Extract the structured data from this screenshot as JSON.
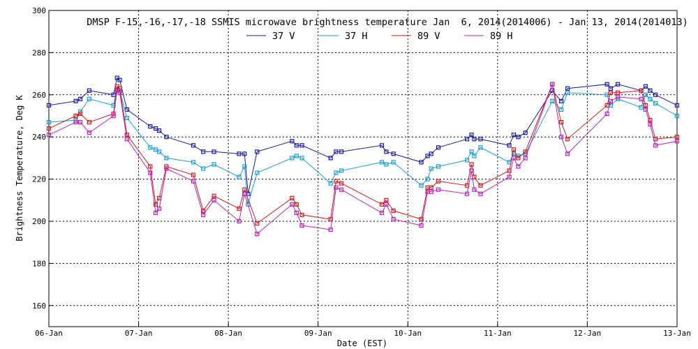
{
  "chart_data": {
    "type": "line",
    "title": "DMSP F-15,-16,-17,-18 SSMIS microwave brightness temperature Jan  6, 2014(2014006) - Jan 13, 2014(2014013)",
    "xlabel": "Date (EST)",
    "ylabel": "Brightness Temperature, Deg K",
    "xlim": [
      0,
      7
    ],
    "ylim": [
      150,
      300
    ],
    "grid": true,
    "legend_position": "top-center",
    "x_ticks": [
      {
        "value": 0,
        "label": "06-Jan"
      },
      {
        "value": 1,
        "label": "07-Jan"
      },
      {
        "value": 2,
        "label": "08-Jan"
      },
      {
        "value": 3,
        "label": "09-Jan"
      },
      {
        "value": 4,
        "label": "10-Jan"
      },
      {
        "value": 5,
        "label": "11-Jan"
      },
      {
        "value": 6,
        "label": "12-Jan"
      },
      {
        "value": 7,
        "label": "13-Jan"
      }
    ],
    "y_ticks": [
      160,
      180,
      200,
      220,
      240,
      260,
      280,
      300
    ],
    "series": [
      {
        "name": "37 V",
        "color": "#1a1aa6",
        "points": [
          [
            0.0,
            255
          ],
          [
            0.3,
            257
          ],
          [
            0.35,
            258
          ],
          [
            0.45,
            262
          ],
          [
            0.72,
            260
          ],
          [
            0.76,
            268
          ],
          [
            0.79,
            267
          ],
          [
            0.87,
            253
          ],
          [
            1.13,
            245
          ],
          [
            1.19,
            244
          ],
          [
            1.23,
            243
          ],
          [
            1.31,
            240
          ],
          [
            1.61,
            236
          ],
          [
            1.72,
            233
          ],
          [
            1.84,
            233
          ],
          [
            2.12,
            232
          ],
          [
            2.18,
            232
          ],
          [
            2.22,
            213
          ],
          [
            2.32,
            233
          ],
          [
            2.71,
            238
          ],
          [
            2.76,
            236
          ],
          [
            2.82,
            236
          ],
          [
            3.14,
            230
          ],
          [
            3.2,
            233
          ],
          [
            3.26,
            233
          ],
          [
            3.71,
            236
          ],
          [
            3.76,
            233
          ],
          [
            3.84,
            232
          ],
          [
            4.15,
            228
          ],
          [
            4.22,
            231
          ],
          [
            4.26,
            232
          ],
          [
            4.34,
            235
          ],
          [
            4.66,
            239
          ],
          [
            4.71,
            241
          ],
          [
            4.74,
            239
          ],
          [
            4.81,
            239
          ],
          [
            5.13,
            236
          ],
          [
            5.18,
            241
          ],
          [
            5.23,
            240
          ],
          [
            5.31,
            242
          ],
          [
            5.61,
            262
          ],
          [
            5.71,
            257
          ],
          [
            5.78,
            263
          ],
          [
            6.22,
            265
          ],
          [
            6.26,
            263
          ],
          [
            6.34,
            265
          ],
          [
            6.6,
            262
          ],
          [
            6.65,
            264
          ],
          [
            6.7,
            262
          ],
          [
            6.76,
            260
          ],
          [
            7.0,
            255
          ]
        ]
      },
      {
        "name": "37 H",
        "color": "#1c9bd6",
        "points": [
          [
            0.0,
            247
          ],
          [
            0.3,
            248
          ],
          [
            0.35,
            252
          ],
          [
            0.45,
            258
          ],
          [
            0.72,
            255
          ],
          [
            0.76,
            263
          ],
          [
            0.79,
            262
          ],
          [
            0.87,
            249
          ],
          [
            1.13,
            235
          ],
          [
            1.19,
            234
          ],
          [
            1.23,
            233
          ],
          [
            1.31,
            230
          ],
          [
            1.61,
            228
          ],
          [
            1.72,
            225
          ],
          [
            1.84,
            227
          ],
          [
            2.12,
            221
          ],
          [
            2.18,
            226
          ],
          [
            2.22,
            208
          ],
          [
            2.32,
            223
          ],
          [
            2.71,
            230
          ],
          [
            2.76,
            231
          ],
          [
            2.82,
            230
          ],
          [
            3.14,
            218
          ],
          [
            3.2,
            223
          ],
          [
            3.26,
            224
          ],
          [
            3.71,
            228
          ],
          [
            3.76,
            227
          ],
          [
            3.84,
            228
          ],
          [
            4.15,
            217
          ],
          [
            4.22,
            220
          ],
          [
            4.26,
            225
          ],
          [
            4.34,
            226
          ],
          [
            4.66,
            229
          ],
          [
            4.71,
            233
          ],
          [
            4.74,
            231
          ],
          [
            4.81,
            235
          ],
          [
            5.13,
            228
          ],
          [
            5.18,
            232
          ],
          [
            5.23,
            231
          ],
          [
            5.31,
            232
          ],
          [
            5.61,
            257
          ],
          [
            5.71,
            253
          ],
          [
            5.78,
            261
          ],
          [
            6.22,
            260
          ],
          [
            6.26,
            255
          ],
          [
            6.34,
            258
          ],
          [
            6.6,
            254
          ],
          [
            6.65,
            260
          ],
          [
            6.7,
            258
          ],
          [
            6.76,
            256
          ],
          [
            7.0,
            250
          ]
        ]
      },
      {
        "name": "89 V",
        "color": "#d21a1a",
        "points": [
          [
            0.0,
            244
          ],
          [
            0.3,
            250
          ],
          [
            0.35,
            251
          ],
          [
            0.45,
            247
          ],
          [
            0.72,
            251
          ],
          [
            0.76,
            264
          ],
          [
            0.79,
            263
          ],
          [
            0.87,
            241
          ],
          [
            1.13,
            226
          ],
          [
            1.19,
            208
          ],
          [
            1.23,
            211
          ],
          [
            1.31,
            226
          ],
          [
            1.61,
            222
          ],
          [
            1.72,
            205
          ],
          [
            1.84,
            212
          ],
          [
            2.12,
            206
          ],
          [
            2.18,
            215
          ],
          [
            2.32,
            199
          ],
          [
            2.71,
            211
          ],
          [
            2.76,
            208
          ],
          [
            2.82,
            203
          ],
          [
            3.14,
            201
          ],
          [
            3.2,
            219
          ],
          [
            3.26,
            218
          ],
          [
            3.71,
            208
          ],
          [
            3.76,
            210
          ],
          [
            3.84,
            205
          ],
          [
            4.15,
            201
          ],
          [
            4.22,
            216
          ],
          [
            4.26,
            216
          ],
          [
            4.34,
            219
          ],
          [
            4.66,
            217
          ],
          [
            4.71,
            227
          ],
          [
            4.74,
            221
          ],
          [
            4.81,
            217
          ],
          [
            5.13,
            224
          ],
          [
            5.18,
            234
          ],
          [
            5.23,
            230
          ],
          [
            5.31,
            233
          ],
          [
            5.61,
            265
          ],
          [
            5.71,
            247
          ],
          [
            5.78,
            239
          ],
          [
            6.22,
            255
          ],
          [
            6.26,
            261
          ],
          [
            6.34,
            261
          ],
          [
            6.6,
            262
          ],
          [
            6.65,
            255
          ],
          [
            6.7,
            248
          ],
          [
            6.76,
            239
          ],
          [
            7.0,
            240
          ]
        ]
      },
      {
        "name": "89 H",
        "color": "#b822b8",
        "points": [
          [
            0.0,
            241
          ],
          [
            0.3,
            247
          ],
          [
            0.35,
            247
          ],
          [
            0.45,
            242
          ],
          [
            0.72,
            250
          ],
          [
            0.76,
            262
          ],
          [
            0.79,
            261
          ],
          [
            0.87,
            239
          ],
          [
            1.13,
            223
          ],
          [
            1.19,
            204
          ],
          [
            1.23,
            206
          ],
          [
            1.31,
            225
          ],
          [
            1.61,
            219
          ],
          [
            1.72,
            203
          ],
          [
            1.84,
            210
          ],
          [
            2.12,
            200
          ],
          [
            2.18,
            213
          ],
          [
            2.32,
            194
          ],
          [
            2.71,
            208
          ],
          [
            2.76,
            204
          ],
          [
            2.82,
            198
          ],
          [
            3.14,
            196
          ],
          [
            3.2,
            216
          ],
          [
            3.26,
            215
          ],
          [
            3.71,
            204
          ],
          [
            3.76,
            208
          ],
          [
            3.84,
            201
          ],
          [
            4.15,
            198
          ],
          [
            4.22,
            214
          ],
          [
            4.26,
            214
          ],
          [
            4.34,
            215
          ],
          [
            4.66,
            213
          ],
          [
            4.71,
            224
          ],
          [
            4.74,
            215
          ],
          [
            4.81,
            213
          ],
          [
            5.13,
            221
          ],
          [
            5.18,
            230
          ],
          [
            5.23,
            226
          ],
          [
            5.31,
            230
          ],
          [
            5.61,
            265
          ],
          [
            5.71,
            240
          ],
          [
            5.78,
            232
          ],
          [
            6.22,
            251
          ],
          [
            6.26,
            257
          ],
          [
            6.34,
            259
          ],
          [
            6.6,
            258
          ],
          [
            6.65,
            253
          ],
          [
            6.7,
            246
          ],
          [
            6.76,
            236
          ],
          [
            7.0,
            238
          ]
        ]
      }
    ]
  }
}
